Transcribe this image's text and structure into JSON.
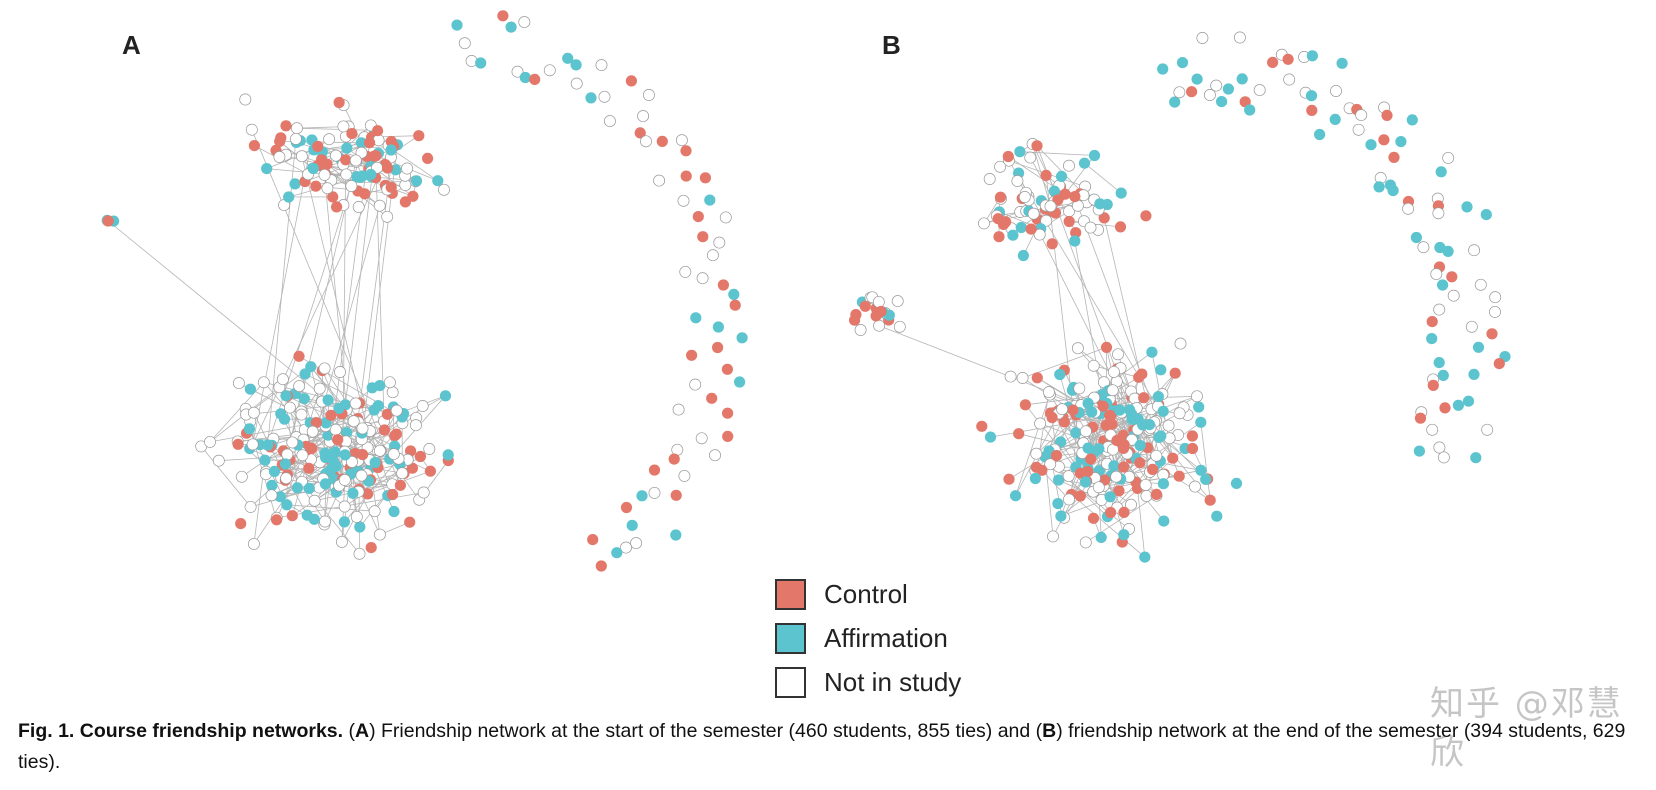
{
  "figure": {
    "panels": [
      {
        "id": "A",
        "label": "A"
      },
      {
        "id": "B",
        "label": "B"
      }
    ],
    "legend": [
      {
        "label": "Control",
        "color": "#e3786a"
      },
      {
        "label": "Affirmation",
        "color": "#5bc4cf"
      },
      {
        "label": "Not in study",
        "color": "#ffffff"
      }
    ],
    "edge_color": "#b5b5b5",
    "node_outline": "#9a9a9a"
  },
  "caption": {
    "fig_label": "Fig. 1. Course friendship networks.",
    "text_1": " (",
    "panel_a": "A",
    "text_2": ") Friendship network at the start of the semester (460 students, 855 ties) and (",
    "panel_b": "B",
    "text_3": ") friendship network at the end of the semester (394 students, 629 ties)."
  },
  "watermark": {
    "text": "知乎 @邓慧欣"
  }
}
